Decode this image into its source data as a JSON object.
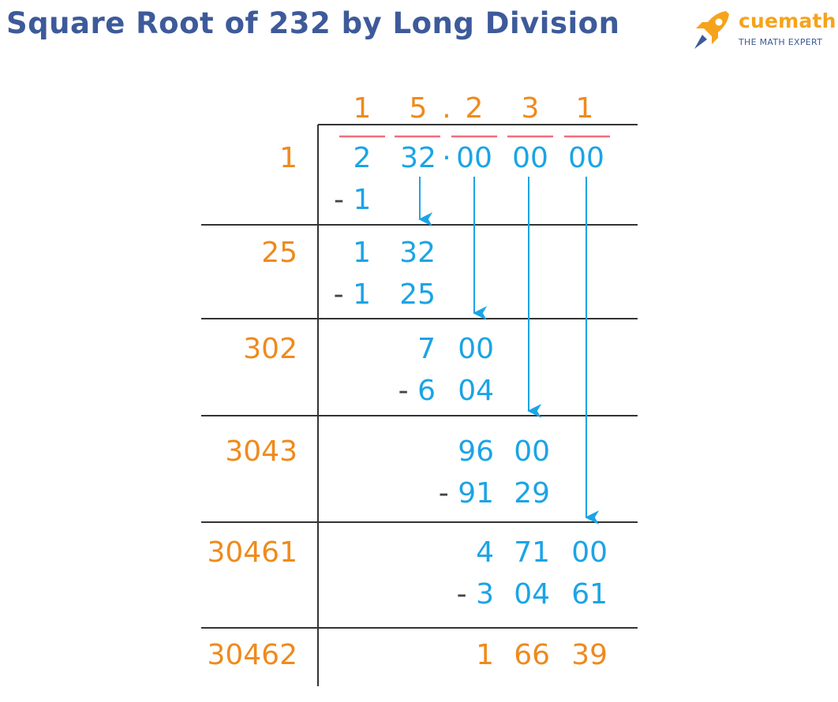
{
  "title": "Square Root of 232 by Long Division",
  "brand": {
    "name": "cuemath",
    "tagline": "THE MATH EXPERT",
    "icon": "rocket-icon",
    "accent": "#f6a31b",
    "secondary": "#3d5a9a"
  },
  "colors": {
    "quotient": "#ef8a1c",
    "digits": "#1ba4e6",
    "arrows": "#1ba4e6",
    "pair_bars": "#f26d7d",
    "lines": "#333333",
    "minus": "#444444"
  },
  "quotient": [
    "1",
    "5",
    ".",
    "2",
    "3",
    "1"
  ],
  "dividend": {
    "pairs": [
      "2",
      "32",
      "00",
      "00",
      "00"
    ],
    "decimal": "·"
  },
  "steps": [
    {
      "divisor": "1",
      "subtract": [
        "- 1"
      ]
    },
    {
      "divisor": "25",
      "value": [
        "1",
        "32"
      ],
      "subtract": [
        "- 1",
        "25"
      ]
    },
    {
      "divisor": "302",
      "value": [
        "7",
        "00"
      ],
      "subtract": [
        "- 6",
        "04"
      ]
    },
    {
      "divisor": "3043",
      "value": [
        "96",
        "00"
      ],
      "subtract": [
        "- 91",
        "29"
      ]
    },
    {
      "divisor": "30461",
      "value": [
        "4",
        "71",
        "00"
      ],
      "subtract": [
        "- 3",
        "04",
        "61"
      ]
    },
    {
      "divisor": "30462",
      "remainder": [
        "1",
        "66",
        "39"
      ]
    }
  ]
}
